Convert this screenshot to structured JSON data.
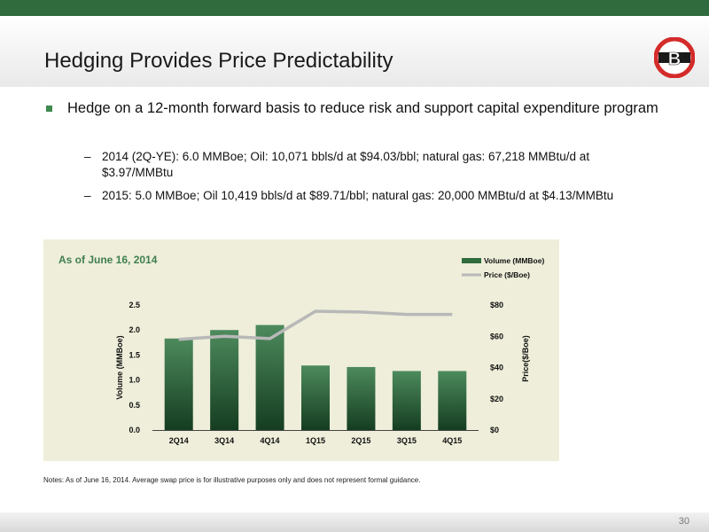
{
  "slide": {
    "title": "Hedging Provides Price Predictability",
    "logo_letter": "B",
    "bullet": "Hedge on a 12-month forward basis to reduce risk and support capital expenditure program",
    "sub_bullets": [
      "2014 (2Q-YE): 6.0 MMBoe;  Oil: 10,071 bbls/d at $94.03/bbl; natural gas: 67,218 MMBtu/d at $3.97/MMBtu",
      "2015: 5.0 MMBoe; Oil 10,419 bbls/d at $89.71/bbl; natural gas: 20,000 MMBtu/d at $4.13/MMBtu"
    ],
    "dash": "–",
    "notes": "Notes: As of June 16, 2014. Average swap price is for illustrative purposes only and does not represent formal guidance.",
    "page_number": "30"
  },
  "colors": {
    "accent_green": "#2f6b3c",
    "bar_top": "#4d8a5c",
    "bar_bottom": "#153d21",
    "price_line": "#b8b8b8",
    "chart_bg": "#eeeeda",
    "logo_red": "#d42b2b"
  },
  "chart_data": {
    "type": "bar",
    "title": "As of June 16, 2014",
    "categories": [
      "2Q14",
      "3Q14",
      "4Q14",
      "1Q15",
      "2Q15",
      "3Q15",
      "4Q15"
    ],
    "series": [
      {
        "name": "Volume (MMBoe)",
        "type": "bar",
        "axis": "left",
        "values": [
          1.83,
          2.0,
          2.1,
          1.29,
          1.26,
          1.18,
          1.18
        ]
      },
      {
        "name": "Price ($/Boe)",
        "type": "line",
        "axis": "right",
        "values": [
          58,
          60,
          58.5,
          76,
          75.5,
          74,
          74
        ]
      }
    ],
    "ylabel": "Volume (MMBoe)",
    "ylim": [
      0,
      2.5
    ],
    "yticks": [
      "0.0",
      "0.5",
      "1.0",
      "1.5",
      "2.0",
      "2.5"
    ],
    "y2label": "Price($/Boe)",
    "y2lim": [
      0,
      80
    ],
    "y2ticks": [
      "$0",
      "$20",
      "$40",
      "$60",
      "$80"
    ],
    "legend_position": "top-right",
    "grid": false
  }
}
